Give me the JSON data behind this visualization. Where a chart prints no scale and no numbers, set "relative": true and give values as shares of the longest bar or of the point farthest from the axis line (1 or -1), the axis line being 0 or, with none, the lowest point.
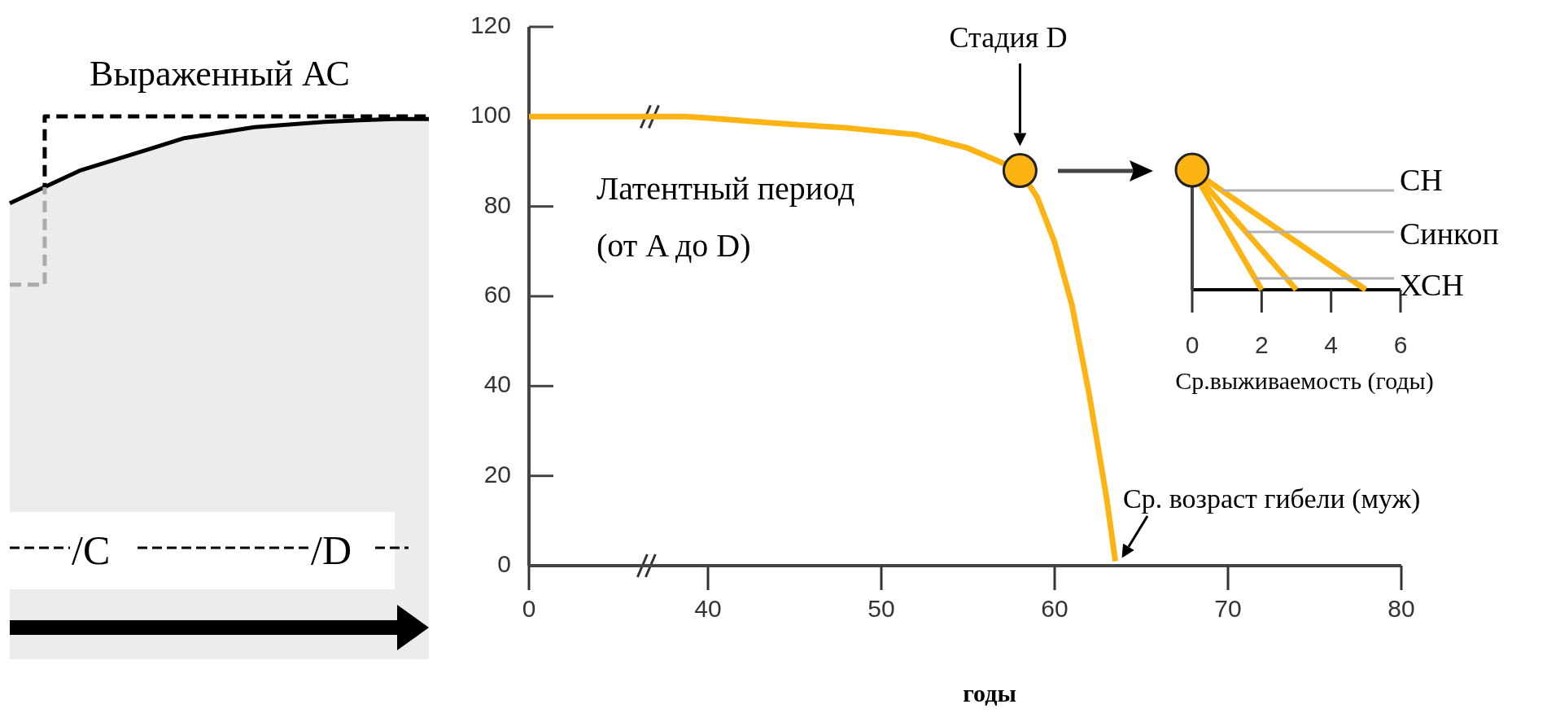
{
  "chart_data": [
    {
      "type": "line",
      "relative": true,
      "tick_labels": false,
      "categories": [
        null,
        null,
        null,
        null,
        null,
        null,
        null,
        null,
        null,
        null,
        null,
        null,
        null
      ],
      "annotations": [
        "Выраженный АС",
        "/C",
        "/D"
      ],
      "series": [
        {
          "color": "#000000",
          "values": [
            0.84,
            0.87,
            0.9,
            0.92,
            0.94,
            0.96,
            0.97,
            0.98,
            0.985,
            0.99,
            0.993,
            0.995,
            0.995
          ]
        },
        {
          "type": "step",
          "color": "#000000",
          "line_style": "dashed",
          "values": [
            0.69,
            1,
            1,
            1,
            1,
            1,
            1,
            1,
            1,
            1,
            1,
            1,
            1
          ]
        }
      ]
    },
    {
      "type": "line",
      "xlim": [
        0,
        40
      ],
      "xticks": [
        0,
        40
      ],
      "ylim": [
        0,
        120
      ],
      "yticks": [
        0,
        20,
        40,
        60,
        80,
        100,
        120
      ],
      "series": [
        {
          "color": "#fbb414",
          "x": [
            0,
            20,
            35,
            40
          ],
          "values": [
            100,
            100,
            100,
            99.7
          ]
        }
      ]
    },
    {
      "type": "line",
      "tick_labels": "x",
      "xlabel": "годы",
      "xlim": [
        40,
        80
      ],
      "xticks": [
        50,
        60,
        70,
        80
      ],
      "ylim": [
        0,
        120
      ],
      "annotations": [
        "Стадия D",
        "Латентный период\n(от A до D)",
        {
          "text": "Ср. возраст гибели (муж)",
          "x": 63.5,
          "y": 1
        }
      ],
      "series": [
        {
          "color": "#fbb414",
          "x": [
            40,
            44,
            48,
            52,
            55,
            58,
            59,
            60,
            61,
            62,
            63,
            63.5
          ],
          "values": [
            99.7,
            98.5,
            97.5,
            96,
            93,
            88,
            82,
            72,
            58,
            38,
            15,
            1
          ]
        },
        {
          "type": "scatter",
          "marker": "circle",
          "color": "#fbb414",
          "x": [
            58
          ],
          "values": [
            88
          ]
        }
      ]
    },
    {
      "type": "line",
      "relative": true,
      "tick_labels": "x",
      "xlabel": "Ср.выживаемость (годы)",
      "xlim": [
        0,
        6
      ],
      "xticks": [
        0,
        2,
        4,
        6
      ],
      "series": [
        {
          "name": "СН",
          "color": "#fbb414",
          "x": [
            0,
            5
          ],
          "values": [
            1,
            0
          ]
        },
        {
          "name": "Синкоп",
          "color": "#fbb414",
          "x": [
            0,
            3
          ],
          "values": [
            1,
            0
          ]
        },
        {
          "name": "ХСН",
          "color": "#fbb414",
          "x": [
            0,
            2
          ],
          "values": [
            1,
            0
          ]
        },
        {
          "type": "scatter",
          "marker": "circle",
          "color": "#fbb414",
          "x": [
            0
          ],
          "values": [
            1
          ]
        }
      ]
    }
  ]
}
